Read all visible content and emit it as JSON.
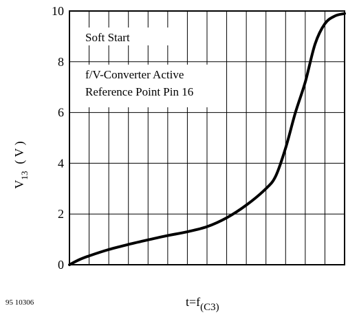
{
  "chart_data": {
    "type": "line",
    "title": "",
    "xlabel": {
      "base": "t=f",
      "sub": "(C3)"
    },
    "ylabel": {
      "base": "V",
      "sub": "13",
      "unit": "( V )"
    },
    "ylim": [
      0,
      10
    ],
    "xlim": [
      0,
      14
    ],
    "grid": true,
    "x_grid_divisions": 14,
    "y_ticks": [
      0,
      2,
      4,
      6,
      8,
      10
    ],
    "y_tick_labels": [
      "0",
      "2",
      "4",
      "6",
      "8",
      "10"
    ],
    "annotations": [
      "Soft Start",
      "f/V-Converter Active",
      "Reference Point Pin 16"
    ],
    "footer_id": "95 10306",
    "line_color": "#000000",
    "series": [
      {
        "x": [
          0,
          0.5,
          1,
          2,
          3,
          4,
          5,
          6,
          7,
          8,
          9,
          10,
          10.5,
          11,
          11.5,
          12,
          12.5,
          13,
          13.5,
          14
        ],
        "y": [
          0,
          0.2,
          0.35,
          0.6,
          0.8,
          0.98,
          1.15,
          1.3,
          1.5,
          1.85,
          2.35,
          3.0,
          3.5,
          4.6,
          6.0,
          7.2,
          8.7,
          9.5,
          9.8,
          9.9
        ]
      }
    ]
  }
}
